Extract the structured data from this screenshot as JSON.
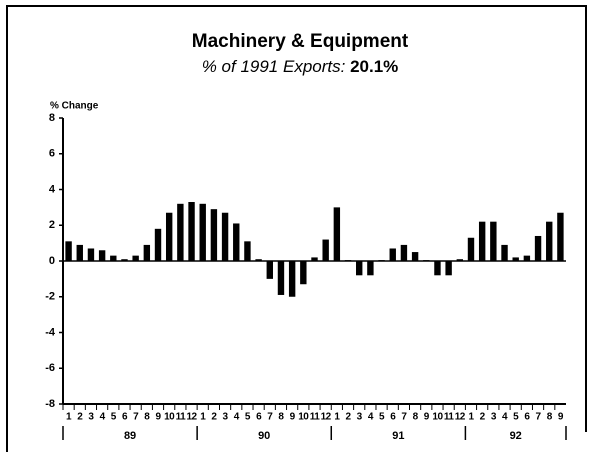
{
  "chart_data": {
    "type": "bar",
    "title": "Machinery & Equipment",
    "subtitle": "% of 1991 Exports:",
    "subtitle_value": "20.1%",
    "y_label": "% Change",
    "categories": [
      "1",
      "2",
      "3",
      "4",
      "5",
      "6",
      "7",
      "8",
      "9",
      "10",
      "11",
      "12",
      "1",
      "2",
      "3",
      "4",
      "5",
      "6",
      "7",
      "8",
      "9",
      "10",
      "11",
      "12",
      "1",
      "2",
      "3",
      "4",
      "5",
      "6",
      "7",
      "8",
      "9",
      "10",
      "11",
      "12",
      "1",
      "2",
      "3",
      "4",
      "5",
      "6",
      "7",
      "8",
      "9"
    ],
    "years": [
      "89",
      "90",
      "91",
      "92"
    ],
    "values": [
      1.1,
      0.9,
      0.7,
      0.6,
      0.3,
      0.1,
      0.3,
      0.9,
      1.8,
      2.7,
      3.2,
      3.3,
      3.2,
      2.9,
      2.7,
      2.1,
      1.1,
      0.1,
      -1.0,
      -1.9,
      -2.0,
      -1.3,
      0.2,
      1.2,
      3.0,
      0.05,
      -0.8,
      -0.8,
      0.05,
      0.7,
      0.9,
      0.5,
      0.05,
      -0.8,
      -0.8,
      0.1,
      1.3,
      2.2,
      2.2,
      0.9,
      0.2,
      0.3,
      1.4,
      2.2,
      2.7
    ],
    "color": "#000000",
    "ylim": [
      -8,
      8
    ],
    "yticks": [
      -8,
      -6,
      -4,
      -2,
      0,
      2,
      4,
      6,
      8
    ],
    "grid": false
  }
}
